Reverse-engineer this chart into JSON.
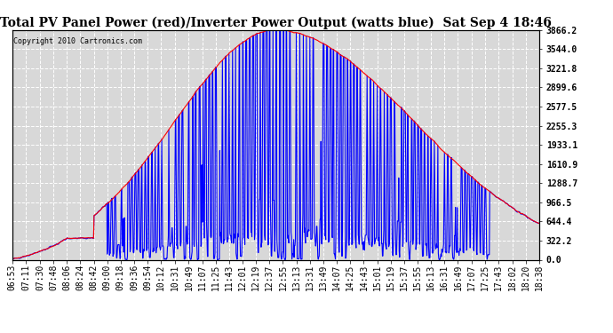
{
  "title": "Total PV Panel Power (red)/Inverter Power Output (watts blue)  Sat Sep 4 18:46",
  "copyright": "Copyright 2010 Cartronics.com",
  "ylabel_right_ticks": [
    0.0,
    322.2,
    644.4,
    966.5,
    1288.7,
    1610.9,
    1933.1,
    2255.3,
    2577.5,
    2899.6,
    3221.8,
    3544.0,
    3866.2
  ],
  "ymax": 3866.2,
  "ymin": 0.0,
  "x_labels": [
    "06:53",
    "07:11",
    "07:30",
    "07:48",
    "08:06",
    "08:24",
    "08:42",
    "09:00",
    "09:18",
    "09:36",
    "09:54",
    "10:12",
    "10:31",
    "10:49",
    "11:07",
    "11:25",
    "11:43",
    "12:01",
    "12:19",
    "12:37",
    "12:55",
    "13:13",
    "13:31",
    "13:49",
    "14:07",
    "14:25",
    "14:43",
    "15:01",
    "15:19",
    "15:37",
    "15:55",
    "16:13",
    "16:31",
    "16:49",
    "17:07",
    "17:25",
    "17:43",
    "18:02",
    "18:20",
    "18:38"
  ],
  "background_color": "#ffffff",
  "plot_bg_color": "#d8d8d8",
  "grid_color": "#ffffff",
  "pv_color": "#ff0000",
  "inv_color": "#0000ff",
  "title_fontsize": 10,
  "tick_fontsize": 7,
  "linewidth_pv": 0.8,
  "linewidth_inv": 0.8
}
